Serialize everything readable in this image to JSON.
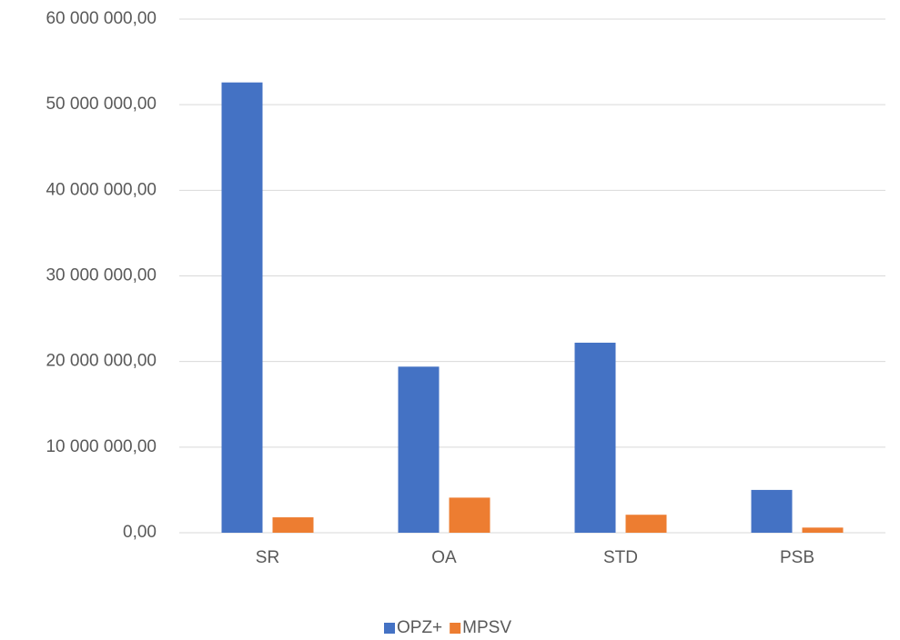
{
  "chart_data": {
    "type": "bar",
    "categories": [
      "SR",
      "OA",
      "STD",
      "PSB"
    ],
    "series": [
      {
        "name": "OPZ+",
        "color": "#4472c4",
        "values": [
          52600000,
          19400000,
          22200000,
          5000000
        ]
      },
      {
        "name": "MPSV",
        "color": "#ed7d31",
        "values": [
          1800000,
          4100000,
          2100000,
          600000
        ]
      }
    ],
    "ylim": [
      0,
      60000000
    ],
    "yticks": [
      {
        "value": 0,
        "label": "0,00"
      },
      {
        "value": 10000000,
        "label": "10 000 000,00"
      },
      {
        "value": 20000000,
        "label": "20 000 000,00"
      },
      {
        "value": 30000000,
        "label": "30 000 000,00"
      },
      {
        "value": 40000000,
        "label": "40 000 000,00"
      },
      {
        "value": 50000000,
        "label": "50 000 000,00"
      },
      {
        "value": 60000000,
        "label": "60 000 000,00"
      }
    ],
    "grid": true,
    "legend": "bottom"
  }
}
